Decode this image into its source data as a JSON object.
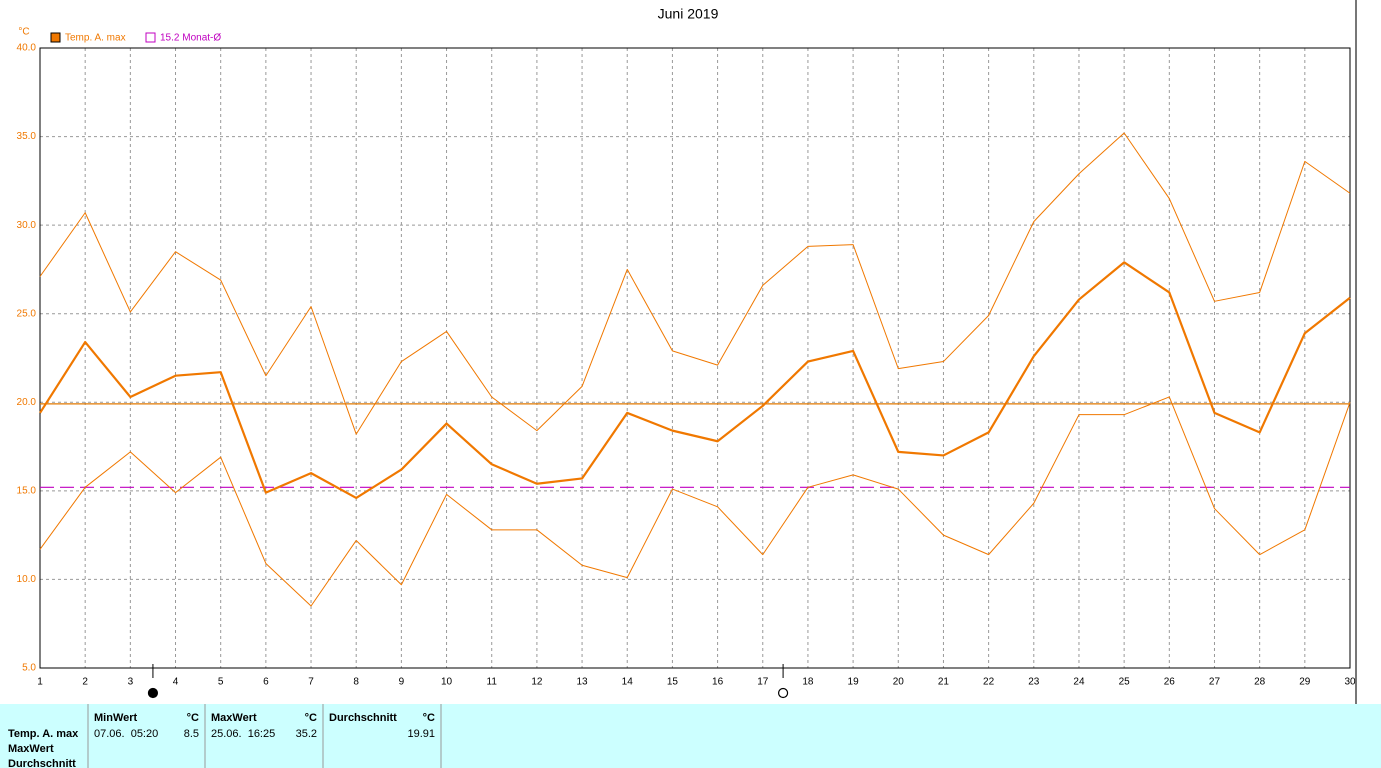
{
  "chart_data": {
    "type": "line",
    "title": "Juni 2019",
    "unit": "°C",
    "x": [
      1,
      2,
      3,
      4,
      5,
      6,
      7,
      8,
      9,
      10,
      11,
      12,
      13,
      14,
      15,
      16,
      17,
      18,
      19,
      20,
      21,
      22,
      23,
      24,
      25,
      26,
      27,
      28,
      29,
      30
    ],
    "xlim": [
      1,
      30
    ],
    "xticks": [
      1,
      2,
      3,
      4,
      5,
      6,
      7,
      8,
      9,
      10,
      11,
      12,
      13,
      14,
      15,
      16,
      17,
      18,
      19,
      20,
      21,
      22,
      23,
      24,
      25,
      26,
      27,
      28,
      29,
      30
    ],
    "ylim": [
      5,
      40
    ],
    "yticks": [
      {
        "value": 5,
        "label": "5.0"
      },
      {
        "value": 10,
        "label": "10.0"
      },
      {
        "value": 15,
        "label": "15.0"
      },
      {
        "value": 20,
        "label": "20.0"
      },
      {
        "value": 25,
        "label": "25.0"
      },
      {
        "value": 30,
        "label": "30.0"
      },
      {
        "value": 35,
        "label": "35.0"
      },
      {
        "value": 40,
        "label": "40.0"
      }
    ],
    "grid": true,
    "series": [
      {
        "name": "Temp. A. max",
        "color": "#f07800",
        "width": 2.2,
        "values": [
          19.4,
          23.4,
          20.3,
          21.5,
          21.7,
          14.9,
          16.0,
          14.6,
          16.2,
          18.8,
          16.5,
          15.4,
          15.7,
          19.4,
          18.4,
          17.8,
          19.8,
          22.3,
          22.9,
          17.2,
          17.0,
          18.3,
          22.6,
          25.8,
          27.9,
          26.2,
          19.4,
          18.3,
          23.9,
          25.9
        ]
      },
      {
        "color": "#f07800",
        "width": 1,
        "values": [
          27.1,
          30.7,
          25.1,
          28.5,
          26.9,
          21.5,
          25.4,
          18.2,
          22.3,
          24.0,
          20.3,
          18.4,
          20.9,
          27.5,
          22.9,
          22.1,
          26.6,
          28.8,
          28.9,
          21.9,
          22.3,
          24.9,
          30.2,
          32.9,
          35.2,
          31.5,
          25.7,
          26.2,
          33.6,
          31.8
        ]
      },
      {
        "color": "#f07800",
        "width": 1,
        "values": [
          11.7,
          15.2,
          17.2,
          14.9,
          16.9,
          10.9,
          8.5,
          12.2,
          9.7,
          14.8,
          12.8,
          12.8,
          10.8,
          10.1,
          15.1,
          14.1,
          11.4,
          15.2,
          15.9,
          15.1,
          12.5,
          11.4,
          14.3,
          19.3,
          19.3,
          20.3,
          14.0,
          11.4,
          12.8,
          20.0
        ]
      }
    ],
    "lines": [
      {
        "value": 19.91,
        "color": "#e07800",
        "dashed": false
      },
      {
        "value": 15.2,
        "color": "#c000c0",
        "dashed": true,
        "label": "15.2 Monat-Ø"
      }
    ],
    "moon_phases": [
      {
        "x": 3.5,
        "phase": "new"
      },
      {
        "x": 17.45,
        "phase": "full"
      }
    ]
  },
  "stats": {
    "row_labels": [
      "Temp. A. max",
      "MaxWert",
      "Durchschnitt"
    ],
    "columns": [
      {
        "header": "MinWert",
        "unit": "°C",
        "time": "07.06.  05:20",
        "value": 8.5
      },
      {
        "header": "MaxWert",
        "unit": "°C",
        "time": "25.06.  16:25",
        "value": 35.2
      },
      {
        "header": "Durchschnitt",
        "unit": "°C",
        "value": 19.91
      }
    ]
  }
}
